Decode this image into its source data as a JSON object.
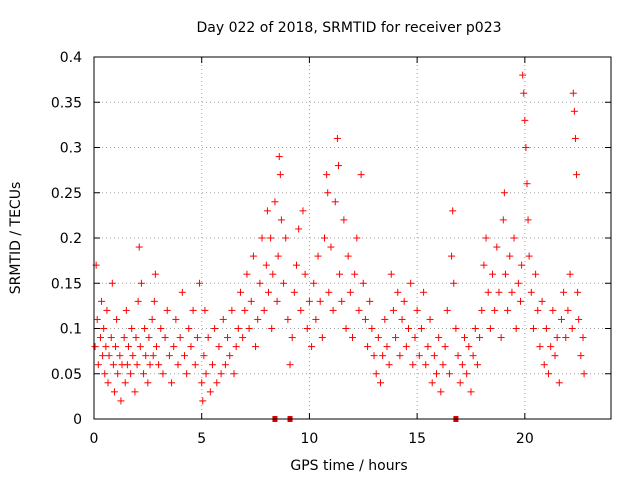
{
  "chart_data": {
    "type": "scatter",
    "title": "Day 022 of 2018, SRMTID for receiver p023",
    "xlabel": "GPS time / hours",
    "ylabel": "SRMTID / TECUs",
    "xlim": [
      0,
      24
    ],
    "ylim": [
      0,
      0.4
    ],
    "x_ticks": [
      0,
      5,
      10,
      15,
      20
    ],
    "x_tick_labels": [
      "0",
      "5",
      "10",
      "15",
      "20"
    ],
    "y_ticks": [
      0,
      0.05,
      0.1,
      0.15,
      0.2,
      0.25,
      0.3,
      0.35,
      0.4
    ],
    "y_tick_labels": [
      "0",
      "0.05",
      "0.1",
      "0.15",
      "0.2",
      "0.25",
      "0.3",
      "0.35",
      "0.4"
    ],
    "grid": true,
    "marker": "+",
    "color": "#ff0000",
    "data_gap_markers_x": [
      8.4,
      9.1,
      16.8
    ],
    "series": [
      {
        "name": "SRMTID",
        "points": [
          [
            0.05,
            0.08
          ],
          [
            0.1,
            0.17
          ],
          [
            0.15,
            0.11
          ],
          [
            0.2,
            0.06
          ],
          [
            0.3,
            0.09
          ],
          [
            0.35,
            0.13
          ],
          [
            0.4,
            0.07
          ],
          [
            0.45,
            0.1
          ],
          [
            0.5,
            0.05
          ],
          [
            0.55,
            0.08
          ],
          [
            0.6,
            0.12
          ],
          [
            0.65,
            0.04
          ],
          [
            0.7,
            0.07
          ],
          [
            0.8,
            0.09
          ],
          [
            0.85,
            0.15
          ],
          [
            0.9,
            0.06
          ],
          [
            0.95,
            0.03
          ],
          [
            1.0,
            0.08
          ],
          [
            1.05,
            0.11
          ],
          [
            1.1,
            0.05
          ],
          [
            1.2,
            0.07
          ],
          [
            1.25,
            0.02
          ],
          [
            1.3,
            0.06
          ],
          [
            1.4,
            0.09
          ],
          [
            1.45,
            0.04
          ],
          [
            1.5,
            0.12
          ],
          [
            1.55,
            0.06
          ],
          [
            1.6,
            0.08
          ],
          [
            1.7,
            0.05
          ],
          [
            1.75,
            0.1
          ],
          [
            1.8,
            0.07
          ],
          [
            1.9,
            0.03
          ],
          [
            1.95,
            0.09
          ],
          [
            2.0,
            0.06
          ],
          [
            2.05,
            0.13
          ],
          [
            2.1,
            0.19
          ],
          [
            2.15,
            0.08
          ],
          [
            2.2,
            0.15
          ],
          [
            2.3,
            0.05
          ],
          [
            2.35,
            0.1
          ],
          [
            2.4,
            0.07
          ],
          [
            2.5,
            0.04
          ],
          [
            2.55,
            0.09
          ],
          [
            2.6,
            0.06
          ],
          [
            2.7,
            0.11
          ],
          [
            2.75,
            0.07
          ],
          [
            2.8,
            0.13
          ],
          [
            2.85,
            0.16
          ],
          [
            2.9,
            0.08
          ],
          [
            3.0,
            0.06
          ],
          [
            3.1,
            0.1
          ],
          [
            3.2,
            0.05
          ],
          [
            3.3,
            0.09
          ],
          [
            3.4,
            0.12
          ],
          [
            3.5,
            0.07
          ],
          [
            3.6,
            0.04
          ],
          [
            3.7,
            0.08
          ],
          [
            3.8,
            0.11
          ],
          [
            3.9,
            0.06
          ],
          [
            4.0,
            0.09
          ],
          [
            4.1,
            0.14
          ],
          [
            4.2,
            0.07
          ],
          [
            4.3,
            0.05
          ],
          [
            4.4,
            0.1
          ],
          [
            4.5,
            0.08
          ],
          [
            4.6,
            0.12
          ],
          [
            4.7,
            0.06
          ],
          [
            4.8,
            0.09
          ],
          [
            4.9,
            0.15
          ],
          [
            5.0,
            0.04
          ],
          [
            5.05,
            0.02
          ],
          [
            5.1,
            0.07
          ],
          [
            5.15,
            0.12
          ],
          [
            5.2,
            0.05
          ],
          [
            5.3,
            0.09
          ],
          [
            5.4,
            0.03
          ],
          [
            5.5,
            0.06
          ],
          [
            5.6,
            0.1
          ],
          [
            5.7,
            0.04
          ],
          [
            5.8,
            0.08
          ],
          [
            5.9,
            0.05
          ],
          [
            6.0,
            0.11
          ],
          [
            6.1,
            0.06
          ],
          [
            6.2,
            0.09
          ],
          [
            6.3,
            0.07
          ],
          [
            6.4,
            0.12
          ],
          [
            6.5,
            0.05
          ],
          [
            6.6,
            0.08
          ],
          [
            6.7,
            0.1
          ],
          [
            6.8,
            0.14
          ],
          [
            6.9,
            0.09
          ],
          [
            7.0,
            0.12
          ],
          [
            7.1,
            0.16
          ],
          [
            7.2,
            0.1
          ],
          [
            7.3,
            0.13
          ],
          [
            7.4,
            0.18
          ],
          [
            7.5,
            0.08
          ],
          [
            7.6,
            0.11
          ],
          [
            7.7,
            0.15
          ],
          [
            7.8,
            0.2
          ],
          [
            7.9,
            0.12
          ],
          [
            8.0,
            0.17
          ],
          [
            8.05,
            0.23
          ],
          [
            8.1,
            0.14
          ],
          [
            8.2,
            0.2
          ],
          [
            8.25,
            0.1
          ],
          [
            8.3,
            0.16
          ],
          [
            8.4,
            0.24
          ],
          [
            8.5,
            0.13
          ],
          [
            8.55,
            0.18
          ],
          [
            8.6,
            0.29
          ],
          [
            8.65,
            0.27
          ],
          [
            8.7,
            0.22
          ],
          [
            8.8,
            0.15
          ],
          [
            8.9,
            0.2
          ],
          [
            9.0,
            0.11
          ],
          [
            9.1,
            0.06
          ],
          [
            9.2,
            0.09
          ],
          [
            9.3,
            0.14
          ],
          [
            9.4,
            0.17
          ],
          [
            9.5,
            0.21
          ],
          [
            9.6,
            0.12
          ],
          [
            9.7,
            0.23
          ],
          [
            9.8,
            0.16
          ],
          [
            9.9,
            0.1
          ],
          [
            10.0,
            0.13
          ],
          [
            10.1,
            0.08
          ],
          [
            10.2,
            0.15
          ],
          [
            10.3,
            0.11
          ],
          [
            10.4,
            0.18
          ],
          [
            10.5,
            0.13
          ],
          [
            10.6,
            0.09
          ],
          [
            10.7,
            0.2
          ],
          [
            10.8,
            0.27
          ],
          [
            10.85,
            0.25
          ],
          [
            10.9,
            0.14
          ],
          [
            11.0,
            0.19
          ],
          [
            11.1,
            0.12
          ],
          [
            11.2,
            0.24
          ],
          [
            11.3,
            0.31
          ],
          [
            11.35,
            0.28
          ],
          [
            11.4,
            0.16
          ],
          [
            11.5,
            0.13
          ],
          [
            11.6,
            0.22
          ],
          [
            11.7,
            0.1
          ],
          [
            11.8,
            0.18
          ],
          [
            11.9,
            0.14
          ],
          [
            12.0,
            0.09
          ],
          [
            12.1,
            0.16
          ],
          [
            12.2,
            0.2
          ],
          [
            12.3,
            0.12
          ],
          [
            12.4,
            0.27
          ],
          [
            12.5,
            0.15
          ],
          [
            12.6,
            0.11
          ],
          [
            12.7,
            0.08
          ],
          [
            12.8,
            0.13
          ],
          [
            12.9,
            0.1
          ],
          [
            13.0,
            0.07
          ],
          [
            13.1,
            0.05
          ],
          [
            13.2,
            0.09
          ],
          [
            13.3,
            0.04
          ],
          [
            13.4,
            0.07
          ],
          [
            13.5,
            0.11
          ],
          [
            13.6,
            0.08
          ],
          [
            13.7,
            0.06
          ],
          [
            13.8,
            0.16
          ],
          [
            13.9,
            0.12
          ],
          [
            14.0,
            0.09
          ],
          [
            14.1,
            0.14
          ],
          [
            14.2,
            0.07
          ],
          [
            14.3,
            0.11
          ],
          [
            14.4,
            0.13
          ],
          [
            14.5,
            0.08
          ],
          [
            14.6,
            0.1
          ],
          [
            14.7,
            0.15
          ],
          [
            14.8,
            0.06
          ],
          [
            14.9,
            0.09
          ],
          [
            15.0,
            0.12
          ],
          [
            15.1,
            0.07
          ],
          [
            15.2,
            0.1
          ],
          [
            15.3,
            0.14
          ],
          [
            15.4,
            0.06
          ],
          [
            15.5,
            0.08
          ],
          [
            15.6,
            0.11
          ],
          [
            15.7,
            0.04
          ],
          [
            15.8,
            0.07
          ],
          [
            15.9,
            0.05
          ],
          [
            16.0,
            0.09
          ],
          [
            16.1,
            0.03
          ],
          [
            16.2,
            0.06
          ],
          [
            16.3,
            0.08
          ],
          [
            16.4,
            0.12
          ],
          [
            16.5,
            0.05
          ],
          [
            16.6,
            0.18
          ],
          [
            16.65,
            0.23
          ],
          [
            16.7,
            0.15
          ],
          [
            16.8,
            0.1
          ],
          [
            16.9,
            0.07
          ],
          [
            17.0,
            0.04
          ],
          [
            17.1,
            0.06
          ],
          [
            17.2,
            0.09
          ],
          [
            17.3,
            0.05
          ],
          [
            17.4,
            0.08
          ],
          [
            17.5,
            0.03
          ],
          [
            17.6,
            0.07
          ],
          [
            17.7,
            0.1
          ],
          [
            17.8,
            0.06
          ],
          [
            17.9,
            0.09
          ],
          [
            18.0,
            0.12
          ],
          [
            18.1,
            0.17
          ],
          [
            18.2,
            0.2
          ],
          [
            18.3,
            0.14
          ],
          [
            18.4,
            0.1
          ],
          [
            18.5,
            0.16
          ],
          [
            18.6,
            0.12
          ],
          [
            18.7,
            0.19
          ],
          [
            18.8,
            0.14
          ],
          [
            18.9,
            0.09
          ],
          [
            19.0,
            0.22
          ],
          [
            19.05,
            0.25
          ],
          [
            19.1,
            0.16
          ],
          [
            19.2,
            0.12
          ],
          [
            19.3,
            0.18
          ],
          [
            19.4,
            0.14
          ],
          [
            19.5,
            0.2
          ],
          [
            19.6,
            0.1
          ],
          [
            19.7,
            0.15
          ],
          [
            19.8,
            0.13
          ],
          [
            19.85,
            0.17
          ],
          [
            19.9,
            0.38
          ],
          [
            19.95,
            0.36
          ],
          [
            20.0,
            0.33
          ],
          [
            20.05,
            0.3
          ],
          [
            20.1,
            0.26
          ],
          [
            20.15,
            0.22
          ],
          [
            20.2,
            0.18
          ],
          [
            20.3,
            0.14
          ],
          [
            20.4,
            0.1
          ],
          [
            20.5,
            0.16
          ],
          [
            20.6,
            0.12
          ],
          [
            20.7,
            0.08
          ],
          [
            20.8,
            0.13
          ],
          [
            20.9,
            0.06
          ],
          [
            21.0,
            0.1
          ],
          [
            21.1,
            0.05
          ],
          [
            21.2,
            0.08
          ],
          [
            21.3,
            0.12
          ],
          [
            21.4,
            0.07
          ],
          [
            21.5,
            0.09
          ],
          [
            21.6,
            0.04
          ],
          [
            21.7,
            0.11
          ],
          [
            21.8,
            0.14
          ],
          [
            21.9,
            0.09
          ],
          [
            22.0,
            0.12
          ],
          [
            22.1,
            0.16
          ],
          [
            22.2,
            0.1
          ],
          [
            22.25,
            0.36
          ],
          [
            22.3,
            0.34
          ],
          [
            22.35,
            0.31
          ],
          [
            22.4,
            0.27
          ],
          [
            22.45,
            0.14
          ],
          [
            22.5,
            0.11
          ],
          [
            22.6,
            0.07
          ],
          [
            22.7,
            0.09
          ],
          [
            22.75,
            0.05
          ]
        ]
      }
    ]
  }
}
